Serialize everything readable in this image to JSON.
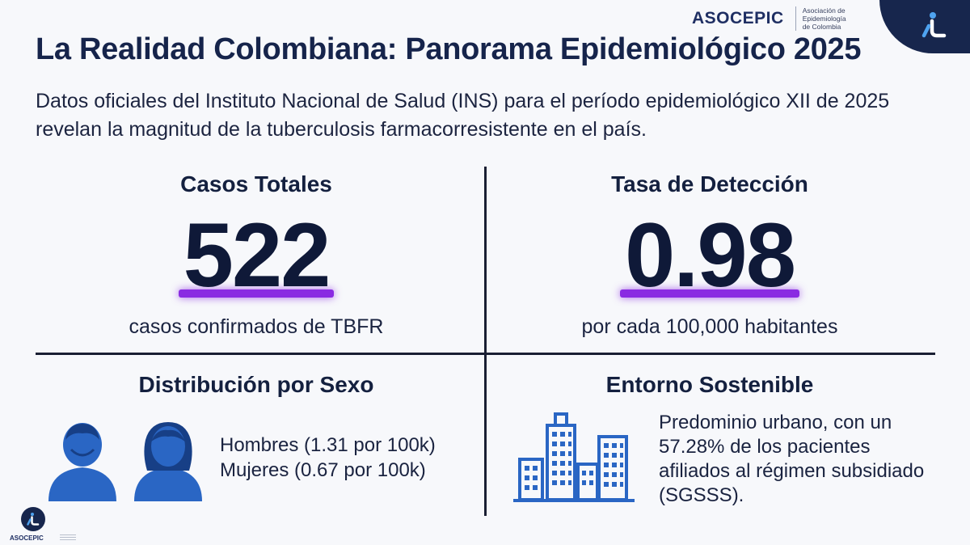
{
  "header": {
    "brand_name": "ASOCEPIC",
    "brand_sub": [
      "Asociación de",
      "Epidemiología",
      "de Colombia"
    ]
  },
  "title": "La Realidad Colombiana: Panorama Epidemiológico 2025",
  "subtitle": "Datos oficiales del Instituto Nacional de Salud (INS) para el período epidemiológico XII de 2025 revelan la magnitud de la tuberculosis farmacorresistente en el país.",
  "stats": [
    {
      "label": "Casos Totales",
      "value": "522",
      "caption": "casos confirmados de TBFR"
    },
    {
      "label": "Tasa de Detección",
      "value": "0.98",
      "caption": "por cada 100,000 habitantes"
    }
  ],
  "sex_distribution": {
    "title": "Distribución por Sexo",
    "lines": [
      "Hombres (1.31 por 100k)",
      "Mujeres (0.67 por 100k)"
    ]
  },
  "environment": {
    "title": "Entorno Sostenible",
    "text": "Predominio urbano, con un 57.28% de los pacientes afiliados al régimen subsidiado (SGSSS)."
  },
  "footer": {
    "brand_name": "ASOCEPIC"
  },
  "colors": {
    "primary": "#16244b",
    "accent": "#8a2be2",
    "icon_blue": "#2a66c4",
    "corner": "#17264d"
  },
  "icons": [
    "brand-logo-icon",
    "man-icon",
    "woman-icon",
    "city-buildings-icon"
  ]
}
